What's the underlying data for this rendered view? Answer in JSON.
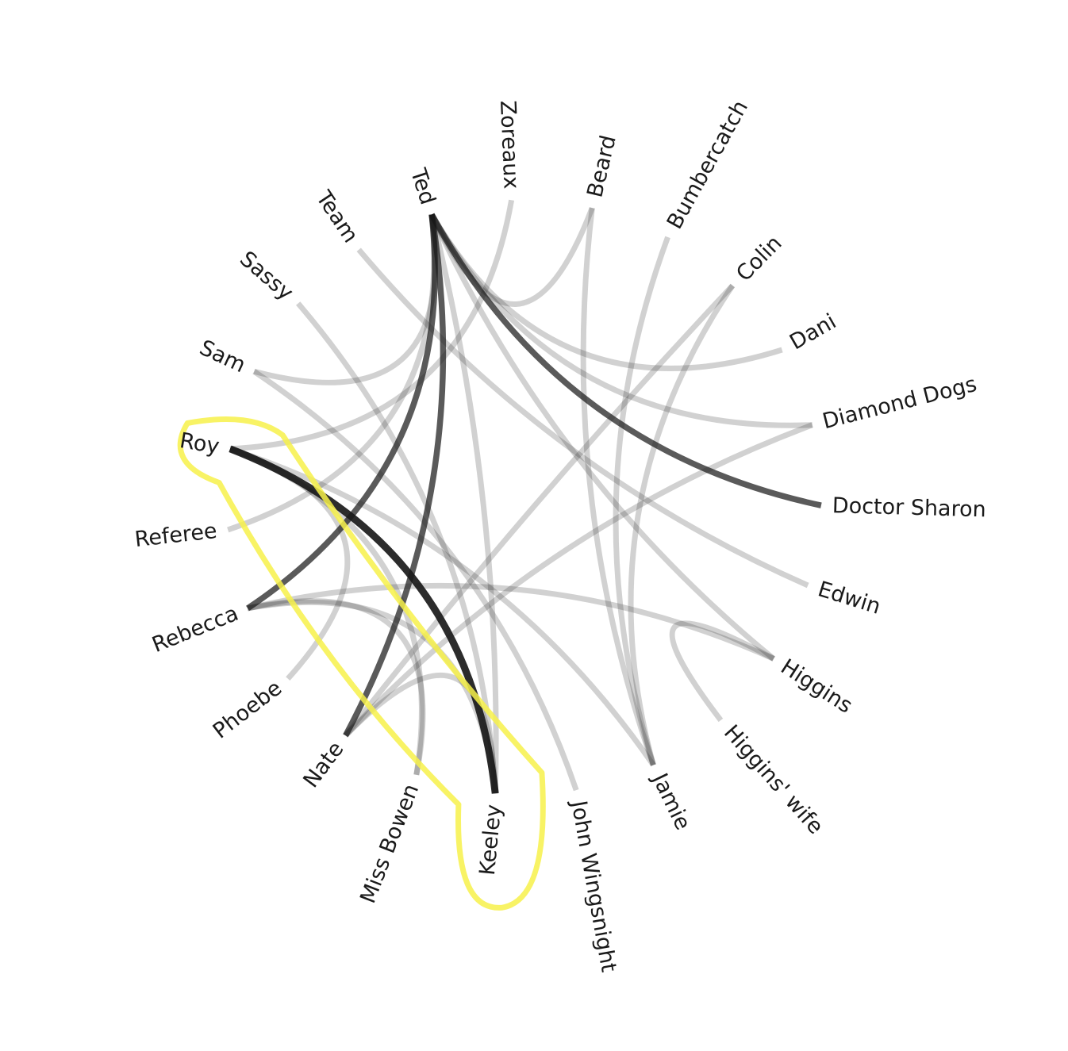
{
  "diagram": {
    "type": "chord-network",
    "nodes": [
      {
        "id": "ted",
        "label": "Ted"
      },
      {
        "id": "zoreaux",
        "label": "Zoreaux"
      },
      {
        "id": "beard",
        "label": "Beard"
      },
      {
        "id": "bumbercatch",
        "label": "Bumbercatch"
      },
      {
        "id": "colin",
        "label": "Colin"
      },
      {
        "id": "dani",
        "label": "Dani"
      },
      {
        "id": "diamond-dogs",
        "label": "Diamond Dogs"
      },
      {
        "id": "doctor-sharon",
        "label": "Doctor Sharon"
      },
      {
        "id": "edwin",
        "label": "Edwin"
      },
      {
        "id": "higgins",
        "label": "Higgins"
      },
      {
        "id": "higgins-wife",
        "label": "Higgins' wife"
      },
      {
        "id": "jamie",
        "label": "Jamie"
      },
      {
        "id": "john-wingsnight",
        "label": "John Wingsnight"
      },
      {
        "id": "keeley",
        "label": "Keeley"
      },
      {
        "id": "miss-bowen",
        "label": "Miss Bowen"
      },
      {
        "id": "nate",
        "label": "Nate"
      },
      {
        "id": "phoebe",
        "label": "Phoebe"
      },
      {
        "id": "rebecca",
        "label": "Rebecca"
      },
      {
        "id": "referee",
        "label": "Referee"
      },
      {
        "id": "roy",
        "label": "Roy"
      },
      {
        "id": "sam",
        "label": "Sam"
      },
      {
        "id": "sassy",
        "label": "Sassy"
      },
      {
        "id": "team",
        "label": "Team"
      }
    ],
    "links": [
      {
        "source": "ted",
        "target": "doctor-sharon",
        "strength": "strong"
      },
      {
        "source": "ted",
        "target": "rebecca",
        "strength": "strong"
      },
      {
        "source": "ted",
        "target": "nate",
        "strength": "strong"
      },
      {
        "source": "roy",
        "target": "keeley",
        "strength": "strongest"
      },
      {
        "source": "ted",
        "target": "dani",
        "strength": "weak"
      },
      {
        "source": "ted",
        "target": "diamond-dogs",
        "strength": "weak"
      },
      {
        "source": "ted",
        "target": "sam",
        "strength": "weak"
      },
      {
        "source": "ted",
        "target": "referee",
        "strength": "weak"
      },
      {
        "source": "ted",
        "target": "higgins",
        "strength": "weak"
      },
      {
        "source": "ted",
        "target": "keeley",
        "strength": "weak"
      },
      {
        "source": "ted",
        "target": "beard",
        "strength": "weak"
      },
      {
        "source": "zoreaux",
        "target": "roy",
        "strength": "weak"
      },
      {
        "source": "beard",
        "target": "jamie",
        "strength": "weak"
      },
      {
        "source": "bumbercatch",
        "target": "jamie",
        "strength": "weak"
      },
      {
        "source": "colin",
        "target": "nate",
        "strength": "weak"
      },
      {
        "source": "colin",
        "target": "jamie",
        "strength": "weak"
      },
      {
        "source": "team",
        "target": "edwin",
        "strength": "weak"
      },
      {
        "source": "sassy",
        "target": "keeley",
        "strength": "weak"
      },
      {
        "source": "sam",
        "target": "john-wingsnight",
        "strength": "weak"
      },
      {
        "source": "roy",
        "target": "jamie",
        "strength": "weak"
      },
      {
        "source": "rebecca",
        "target": "higgins",
        "strength": "weak"
      },
      {
        "source": "rebecca",
        "target": "keeley",
        "strength": "weak"
      },
      {
        "source": "phoebe",
        "target": "roy",
        "strength": "weak"
      },
      {
        "source": "miss-bowen",
        "target": "roy",
        "strength": "weak"
      },
      {
        "source": "nate",
        "target": "keeley",
        "strength": "weak"
      },
      {
        "source": "nate",
        "target": "diamond-dogs",
        "strength": "weak"
      },
      {
        "source": "higgins",
        "target": "higgins-wife",
        "strength": "weak"
      },
      {
        "source": "rebecca",
        "target": "miss-bowen",
        "strength": "weak"
      }
    ],
    "highlight": {
      "nodes": [
        "roy",
        "keeley"
      ],
      "color": "#f7f14a"
    },
    "colors": {
      "link": "#1a1a1a",
      "label": "#1a1a1a"
    }
  }
}
